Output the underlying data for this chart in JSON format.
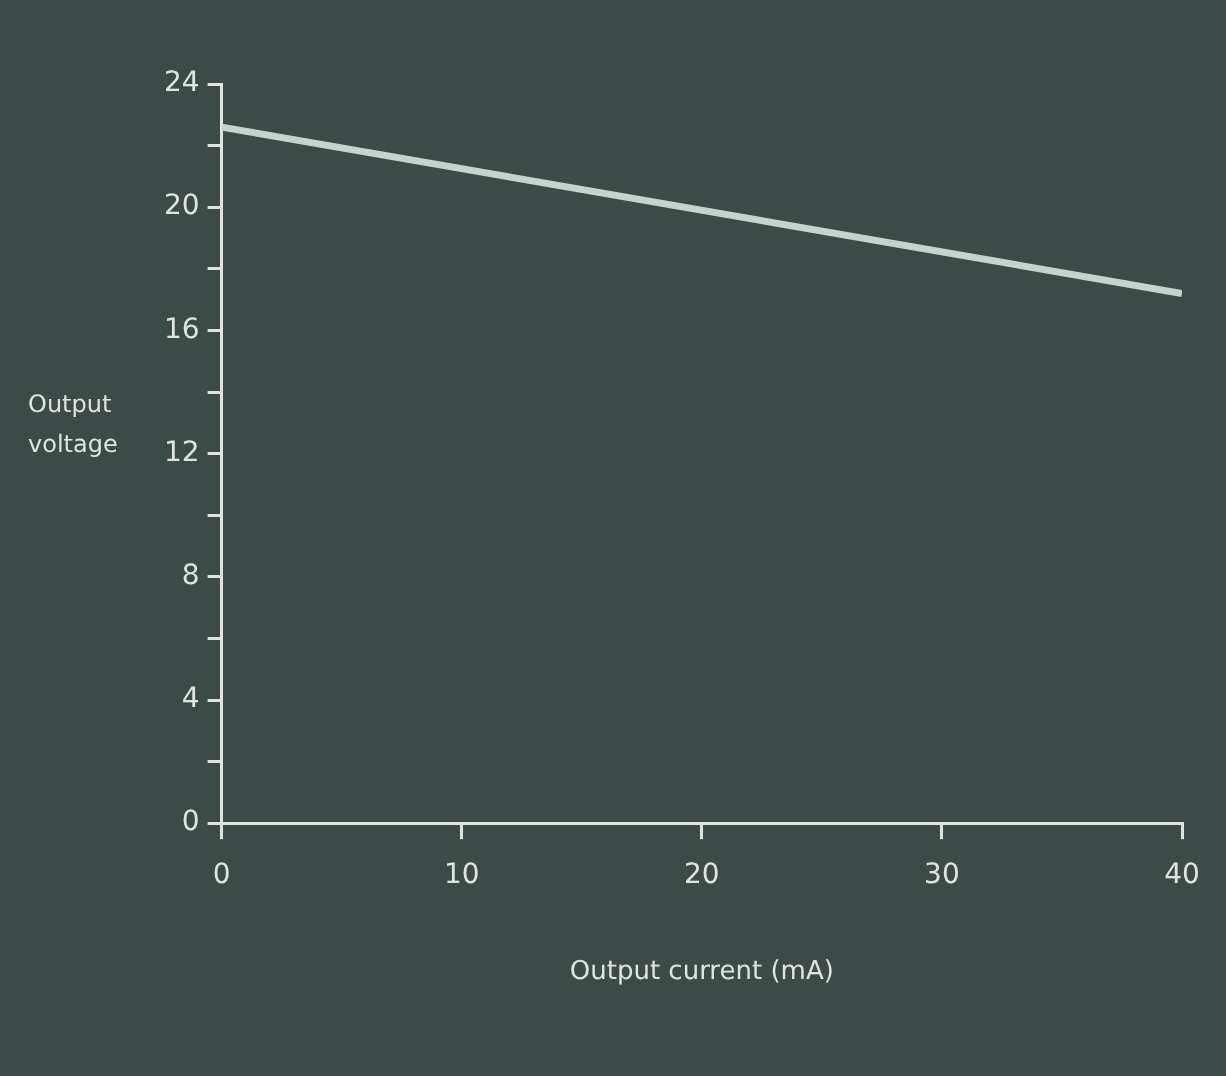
{
  "chart_data": {
    "type": "line",
    "xlabel": "Output current (mA)",
    "ylabel": "Output voltage",
    "x": [
      0,
      40
    ],
    "series": [
      {
        "color": "#c9d3cd",
        "values": [
          22.6,
          17.2
        ]
      }
    ],
    "xlim": [
      0,
      40
    ],
    "xticks": [
      0,
      10,
      20,
      30,
      40
    ],
    "ylim": [
      0,
      24
    ],
    "yticks": [
      0,
      {
        "value": 2,
        "label": null
      },
      4,
      {
        "value": 6,
        "label": null
      },
      8,
      {
        "value": 10,
        "label": null
      },
      12,
      {
        "value": 14,
        "label": null
      },
      16,
      {
        "value": 18,
        "label": null
      },
      20,
      {
        "value": 22,
        "label": null
      },
      24
    ],
    "grid": false,
    "legend": false,
    "marker": "none",
    "line_style": "solid"
  }
}
